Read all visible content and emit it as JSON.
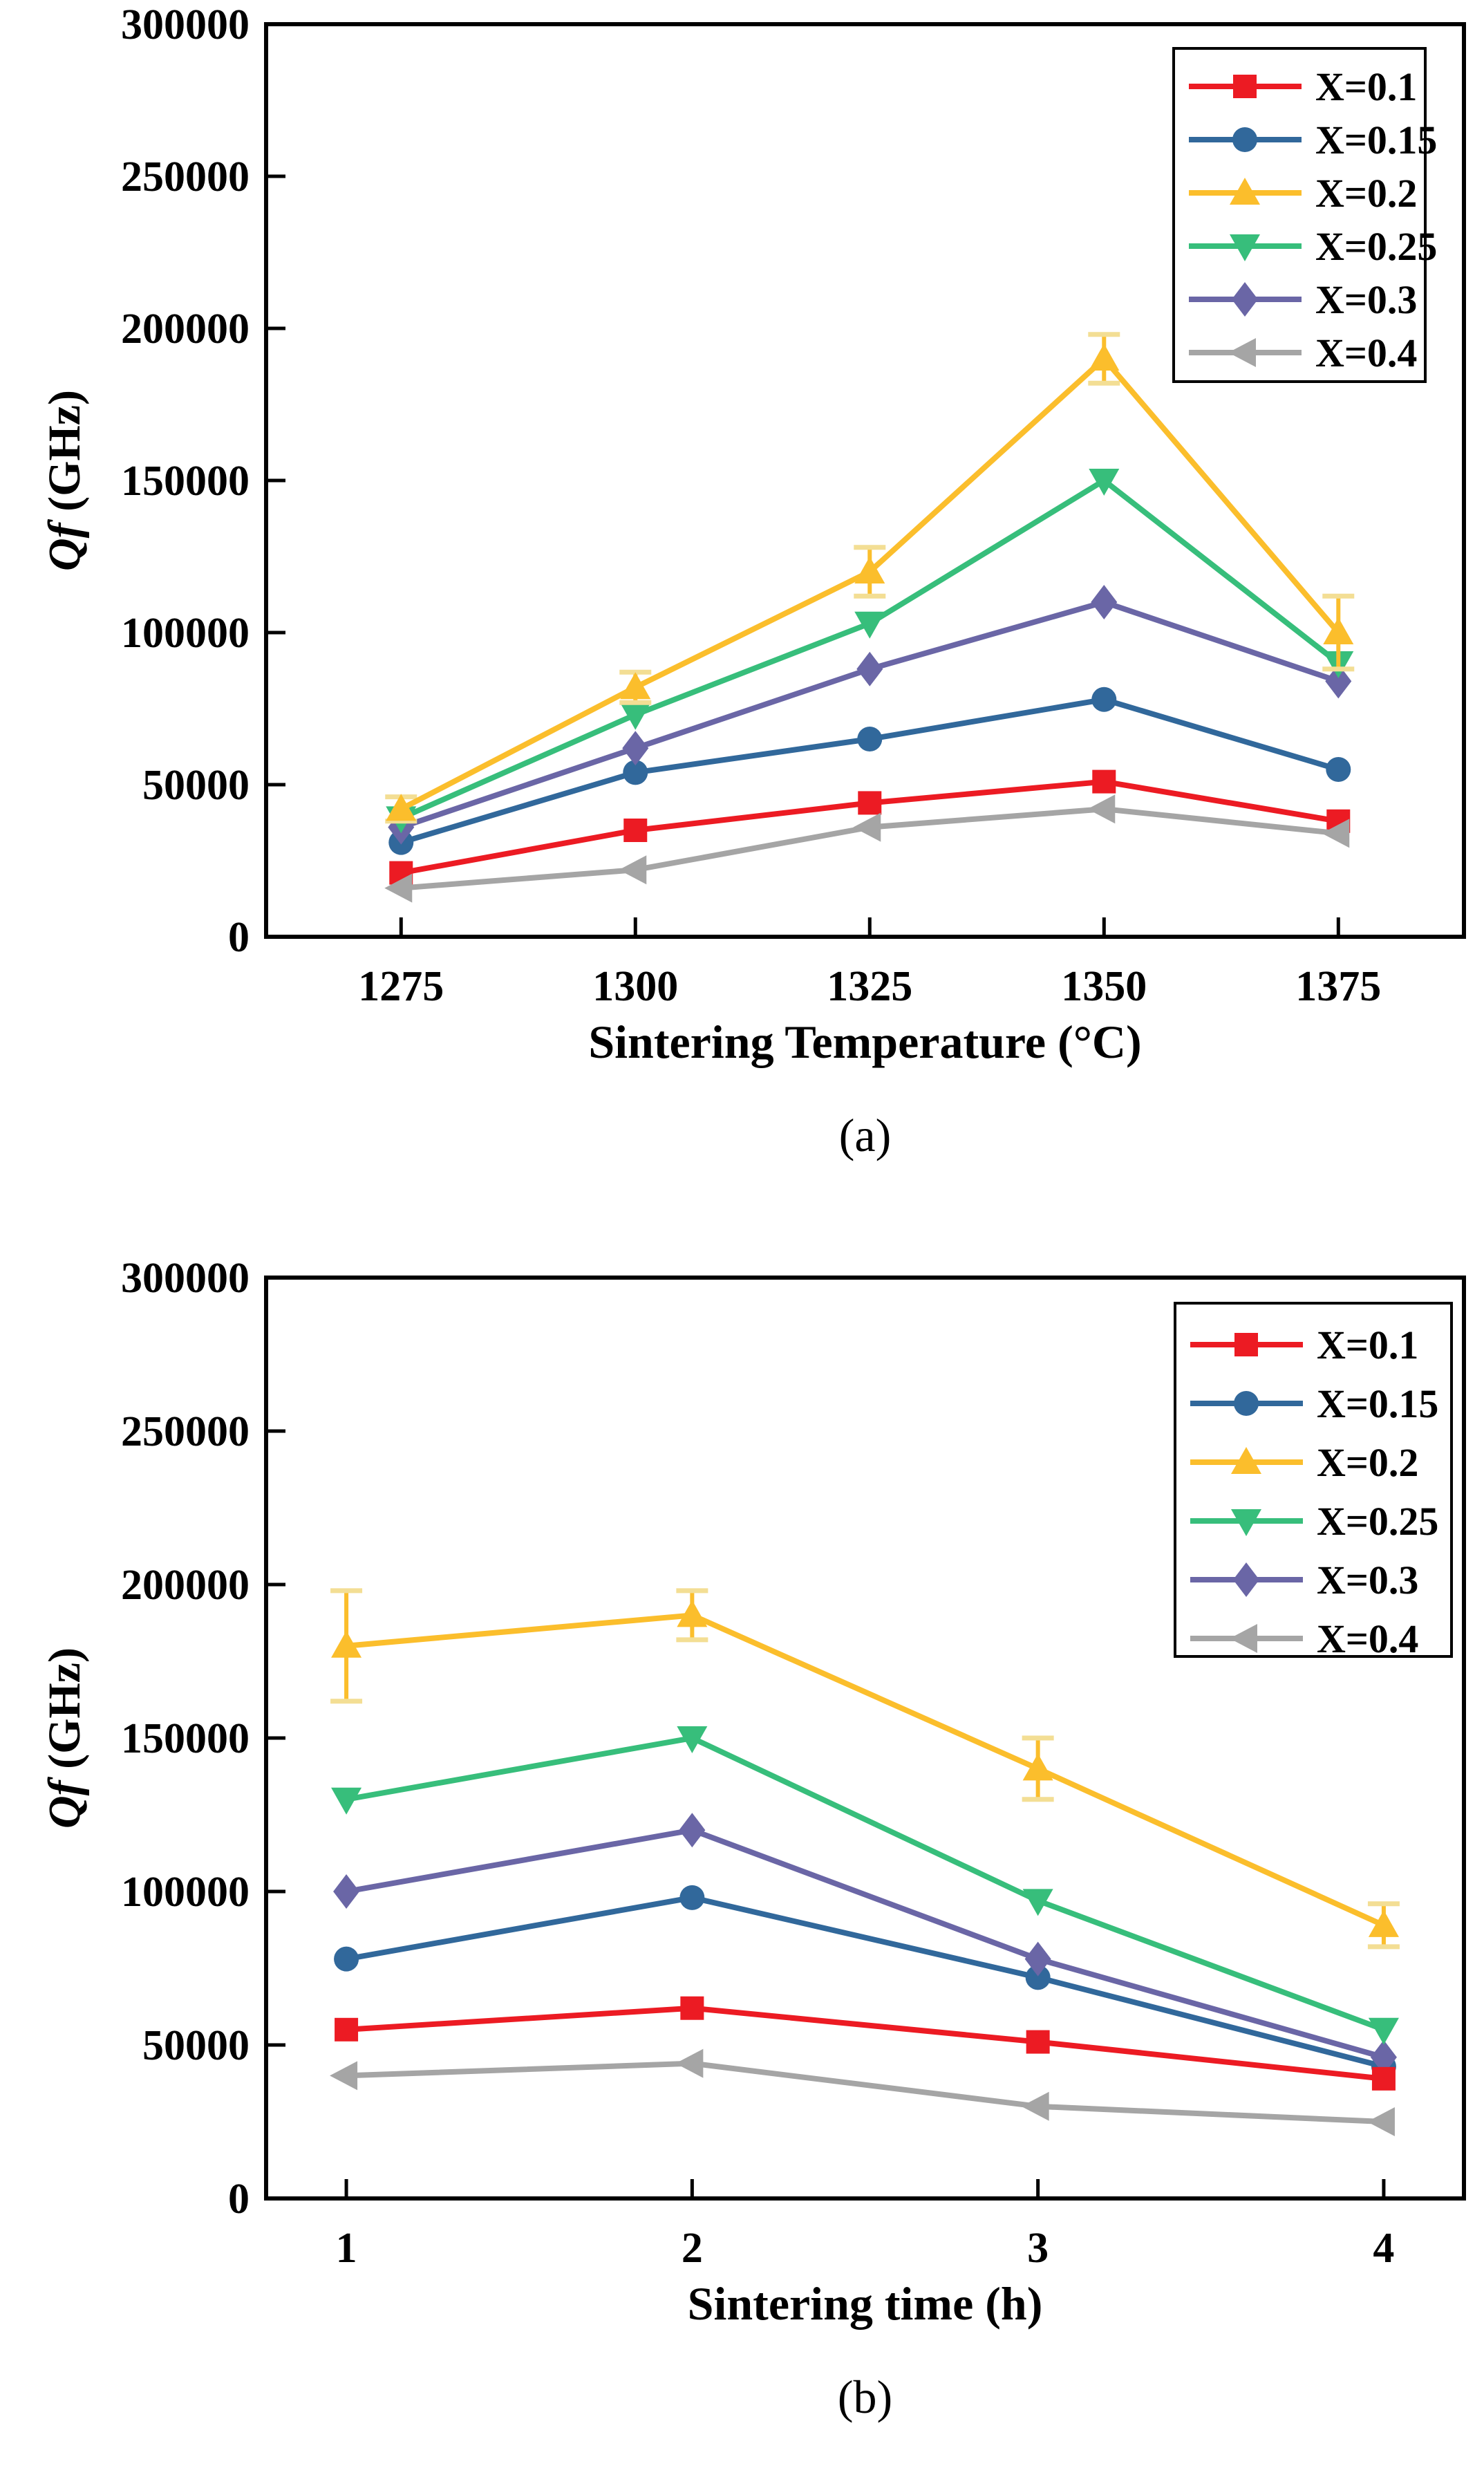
{
  "background": "#ffffff",
  "text_color": "#000000",
  "chart_data": [
    {
      "id": "a",
      "type": "line",
      "caption": "(a)",
      "xlabel": "Sintering Temperature (°C)",
      "ylabel_italic": "Qf",
      "ylabel_rest": " (GHz)",
      "x": [
        1275,
        1300,
        1325,
        1350,
        1375
      ],
      "x_tick_labels": [
        "1275",
        "1300",
        "1325",
        "1350",
        "1375"
      ],
      "y_ticks": [
        0,
        50000,
        100000,
        150000,
        200000,
        250000,
        300000
      ],
      "y_tick_labels": [
        "0",
        "50000",
        "100000",
        "150000",
        "200000",
        "250000",
        "300000"
      ],
      "ylim": [
        0,
        300000
      ],
      "grid": false,
      "legend_position": "top-right",
      "series": [
        {
          "name": "X=0.1",
          "color": "#EC1B23",
          "marker": "square",
          "values": [
            21000,
            35000,
            44000,
            51000,
            38000
          ]
        },
        {
          "name": "X=0.15",
          "color": "#31689B",
          "marker": "circle",
          "values": [
            31000,
            54000,
            65000,
            78000,
            55000
          ]
        },
        {
          "name": "X=0.2",
          "color": "#FBBE2C",
          "marker": "triangle-up",
          "values": [
            42000,
            82000,
            120000,
            190000,
            100000
          ],
          "errors": [
            4000,
            5000,
            8000,
            8000,
            12000
          ],
          "error_cap_color": "#F3DE94"
        },
        {
          "name": "X=0.25",
          "color": "#37BE7B",
          "marker": "triangle-down",
          "values": [
            39000,
            73000,
            103000,
            150000,
            90000
          ]
        },
        {
          "name": "X=0.3",
          "color": "#6A66A6",
          "marker": "diamond",
          "values": [
            36000,
            62000,
            88000,
            110000,
            84000
          ]
        },
        {
          "name": "X=0.4",
          "color": "#A5A5A5",
          "marker": "triangle-left",
          "values": [
            16000,
            22000,
            36000,
            42000,
            34000
          ]
        }
      ]
    },
    {
      "id": "b",
      "type": "line",
      "caption": "(b)",
      "xlabel": "Sintering time (h)",
      "ylabel_italic": "Qf",
      "ylabel_rest": " (GHz)",
      "x": [
        1,
        2,
        3,
        4
      ],
      "x_tick_labels": [
        "1",
        "2",
        "3",
        "4"
      ],
      "y_ticks": [
        0,
        50000,
        100000,
        150000,
        200000,
        250000,
        300000
      ],
      "y_tick_labels": [
        "0",
        "50000",
        "100000",
        "150000",
        "200000",
        "250000",
        "300000"
      ],
      "ylim": [
        0,
        300000
      ],
      "grid": false,
      "legend_position": "top-right",
      "series": [
        {
          "name": "X=0.1",
          "color": "#EC1B23",
          "marker": "square",
          "values": [
            55000,
            62000,
            51000,
            39000
          ]
        },
        {
          "name": "X=0.15",
          "color": "#31689B",
          "marker": "circle",
          "values": [
            78000,
            98000,
            72000,
            43000
          ]
        },
        {
          "name": "X=0.2",
          "color": "#FBBE2C",
          "marker": "triangle-up",
          "values": [
            180000,
            190000,
            140000,
            89000
          ],
          "errors": [
            18000,
            8000,
            10000,
            7000
          ],
          "error_cap_color": "#F3DE94"
        },
        {
          "name": "X=0.25",
          "color": "#37BE7B",
          "marker": "triangle-down",
          "values": [
            130000,
            150000,
            97000,
            55000
          ]
        },
        {
          "name": "X=0.3",
          "color": "#6A66A6",
          "marker": "diamond",
          "values": [
            100000,
            120000,
            78000,
            46000
          ]
        },
        {
          "name": "X=0.4",
          "color": "#A5A5A5",
          "marker": "triangle-left",
          "values": [
            40000,
            44000,
            30000,
            25000
          ]
        }
      ]
    }
  ]
}
